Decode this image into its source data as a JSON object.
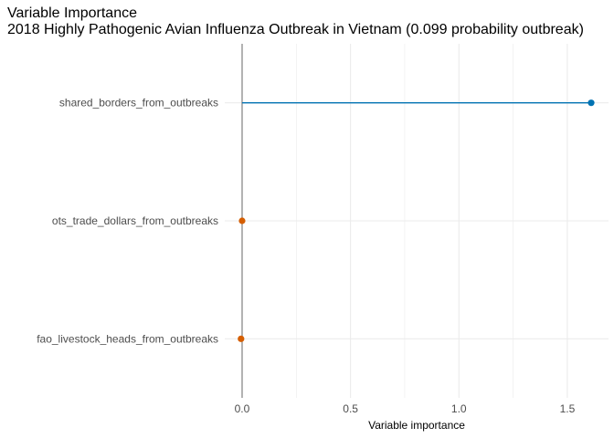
{
  "chart_data": {
    "type": "lollipop",
    "title": "Variable Importance",
    "subtitle": "2018 Highly Pathogenic Avian Influenza Outbreak in Vietnam (0.099 probability outbreak)",
    "xlabel": "Variable importance",
    "ylabel": "",
    "xlim": [
      -0.08,
      1.69
    ],
    "x_ticks": [
      "0.0",
      "0.5",
      "1.0",
      "1.5"
    ],
    "x_tick_values": [
      0.0,
      0.5,
      1.0,
      1.5
    ],
    "grid": true,
    "legend": "none",
    "reference_line": 0,
    "categories": [
      "shared_borders_from_outbreaks",
      "ots_trade_dollars_from_outbreaks",
      "fao_livestock_heads_from_outbreaks"
    ],
    "values": [
      1.61,
      0.0,
      -0.005
    ],
    "colors": [
      "#0072B2",
      "#D55E00",
      "#D55E00"
    ]
  },
  "colors": {
    "positive": "#0072B2",
    "non_positive": "#D55E00",
    "zero_line": "#808080",
    "grid": "#ebebeb"
  }
}
